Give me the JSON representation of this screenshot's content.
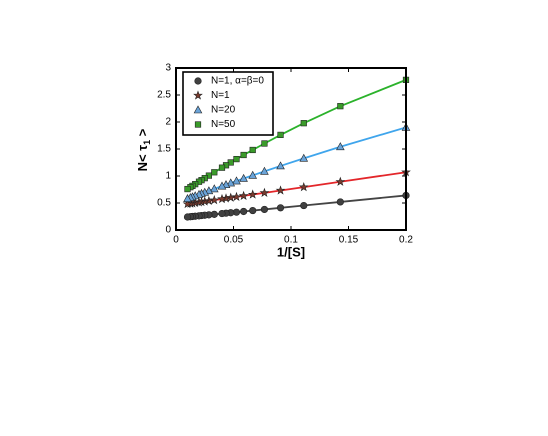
{
  "chart_data": {
    "type": "scatter",
    "xlabel": "1/[S]",
    "ylabel": [
      "N< τ",
      "1",
      " >"
    ],
    "x": [
      0.2,
      0.1429,
      0.1111,
      0.0909,
      0.0769,
      0.0667,
      0.0588,
      0.0526,
      0.0476,
      0.0435,
      0.04,
      0.0333,
      0.0286,
      0.025,
      0.0222,
      0.02,
      0.0167,
      0.0143,
      0.0125,
      0.01
    ],
    "series": [
      {
        "name": "N=1, α=β=0",
        "color": "#444444",
        "marker": "circle",
        "marker_color": "#404040",
        "values": [
          0.64,
          0.52,
          0.453,
          0.411,
          0.381,
          0.36,
          0.343,
          0.33,
          0.32,
          0.311,
          0.304,
          0.29,
          0.28,
          0.273,
          0.267,
          0.262,
          0.255,
          0.25,
          0.246,
          0.241
        ]
      },
      {
        "name": "N=1",
        "color": "#e3262a",
        "marker": "star",
        "marker_color": "#7a3b2e",
        "values": [
          1.07,
          0.893,
          0.794,
          0.732,
          0.688,
          0.657,
          0.632,
          0.613,
          0.598,
          0.585,
          0.574,
          0.553,
          0.539,
          0.528,
          0.519,
          0.512,
          0.502,
          0.494,
          0.489,
          0.481
        ]
      },
      {
        "name": "N=20",
        "color": "#3fa5ec",
        "marker": "triangle",
        "marker_color": "#6aa3d8",
        "values": [
          1.9,
          1.541,
          1.327,
          1.186,
          1.085,
          1.011,
          0.954,
          0.907,
          0.87,
          0.839,
          0.812,
          0.761,
          0.725,
          0.697,
          0.675,
          0.658,
          0.632,
          0.613,
          0.599,
          0.58
        ]
      },
      {
        "name": "N=50",
        "color": "#2bb22b",
        "marker": "square",
        "marker_color": "#3a9b2a",
        "values": [
          2.78,
          2.293,
          1.978,
          1.761,
          1.602,
          1.482,
          1.389,
          1.313,
          1.251,
          1.199,
          1.154,
          1.069,
          1.007,
          0.96,
          0.923,
          0.894,
          0.849,
          0.817,
          0.793,
          0.758
        ]
      }
    ],
    "xlim": [
      0,
      0.2
    ],
    "xticks": [
      0,
      0.05,
      0.1,
      0.15,
      0.2
    ],
    "ylim": [
      0,
      3
    ],
    "yticks": [
      0,
      0.5,
      1,
      1.5,
      2,
      2.5,
      3
    ],
    "legend": "upper left"
  }
}
